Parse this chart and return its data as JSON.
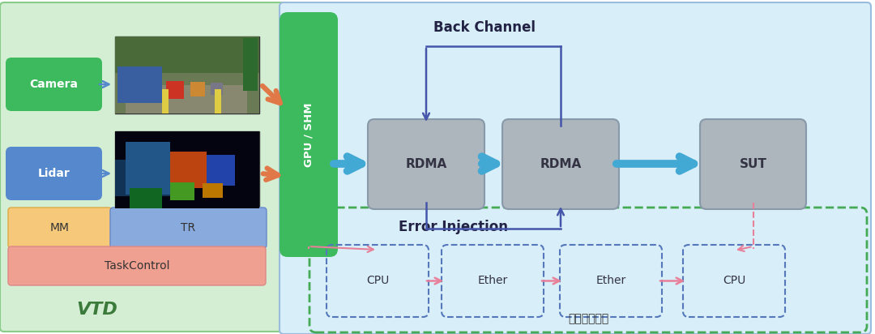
{
  "fig_width": 10.8,
  "fig_height": 4.12,
  "bg_color": "#ffffff",
  "left_panel_bg": "#d4eed4",
  "right_panel_bg": "#d8eef8",
  "vtd_label": "VTD",
  "camera_label": "Camera",
  "lidar_label": "Lidar",
  "mm_label": "MM",
  "tr_label": "TR",
  "taskcontrol_label": "TaskControl",
  "gpu_shm_label": "GPU / SHM",
  "rdma1_label": "RDMA",
  "rdma2_label": "RDMA",
  "sut_label": "SUT",
  "back_channel_label": "Back Channel",
  "error_injection_label": "Error Injection",
  "cpu1_label": "CPU",
  "ether1_label": "Ether",
  "ether2_label": "Ether",
  "cpu2_label": "CPU",
  "traditional_label": "传统传输方案",
  "green_box_color": "#3dba5e",
  "blue_box_color": "#5588cc",
  "mm_color": "#f5c87a",
  "tr_color": "#88aadd",
  "tc_color": "#f0a090",
  "gray_rdma_color": "#adb5bd",
  "blue_arrow_color": "#42a8d4",
  "orange_arrow_color": "#e07848",
  "pink_arrow_color": "#e8809a",
  "dark_blue_line_color": "#4455aa",
  "green_dash_color": "#44aa55",
  "blue_dash_color": "#5577bb"
}
